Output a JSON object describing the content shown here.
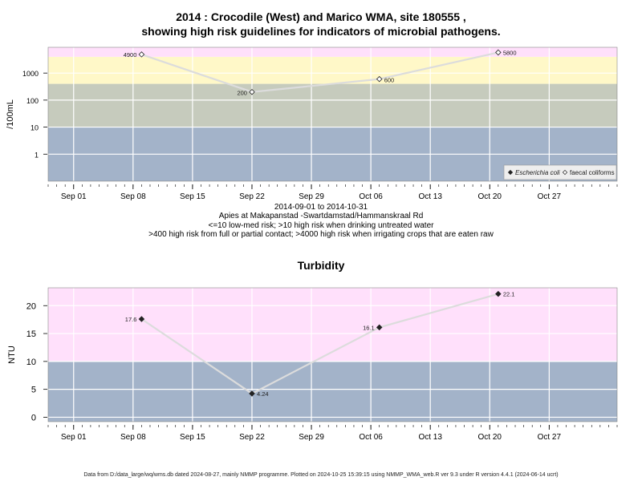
{
  "chart_data": [
    {
      "type": "line",
      "title_line1": "2014 : Crocodile (West) and Marico WMA, site 180555 ,",
      "title_line2": "showing high risk guidelines for indicators of microbial pathogens.",
      "ylabel": "/100mL",
      "yscale": "log",
      "ylim": [
        0.1,
        9000
      ],
      "yticks": [
        "1",
        "10",
        "100",
        "1000"
      ],
      "xticks": [
        "Sep 01",
        "Sep 08",
        "Sep 15",
        "Sep 22",
        "Sep 29",
        "Oct 06",
        "Oct 13",
        "Oct 20",
        "Oct 27"
      ],
      "xlim": [
        "2014-08-29",
        "2014-11-04"
      ],
      "bands": [
        {
          "from": 0.1,
          "to": 10,
          "color": "#a3b3c9"
        },
        {
          "from": 10,
          "to": 400,
          "color": "#c6cbbd"
        },
        {
          "from": 400,
          "to": 4000,
          "color": "#fff8c8"
        },
        {
          "from": 4000,
          "to": 9000,
          "color": "#ffe0fb"
        }
      ],
      "legend": {
        "placement": "bottom-right",
        "items": [
          {
            "label": "Escherichia coli",
            "marker": "filled-diamond"
          },
          {
            "label": "faecal coliforms",
            "marker": "open-diamond"
          }
        ]
      },
      "series": [
        {
          "name": "faecal coliforms",
          "marker": "open-diamond",
          "points": [
            {
              "date": "2014-09-09",
              "value": 4900,
              "label": "4900"
            },
            {
              "date": "2014-09-22",
              "value": 200,
              "label": "200"
            },
            {
              "date": "2014-10-07",
              "value": 600,
              "label": "600"
            },
            {
              "date": "2014-10-21",
              "value": 5800,
              "label": "5800"
            }
          ]
        }
      ]
    },
    {
      "type": "line",
      "title": "Turbidity",
      "ylabel": "NTU",
      "ylim": [
        -0.8,
        23.2
      ],
      "yticks": [
        "0",
        "5",
        "10",
        "15",
        "20"
      ],
      "xticks": [
        "Sep 01",
        "Sep 08",
        "Sep 15",
        "Sep 22",
        "Sep 29",
        "Oct 06",
        "Oct 13",
        "Oct 20",
        "Oct 27"
      ],
      "xlim": [
        "2014-08-29",
        "2014-11-04"
      ],
      "bands": [
        {
          "from": -0.8,
          "to": 10,
          "color": "#a3b3c9"
        },
        {
          "from": 10,
          "to": 23.2,
          "color": "#ffe0fb"
        }
      ],
      "series": [
        {
          "marker": "filled-diamond",
          "points": [
            {
              "date": "2014-09-09",
              "value": 17.6,
              "label": "17.6"
            },
            {
              "date": "2014-09-22",
              "value": 4.24,
              "label": "4.24"
            },
            {
              "date": "2014-10-07",
              "value": 16.1,
              "label": "16.1"
            },
            {
              "date": "2014-10-21",
              "value": 22.1,
              "label": "22.1"
            }
          ]
        }
      ]
    }
  ],
  "captions": {
    "date_range": "2014-09-01 to 2014-10-31",
    "site_name": "Apies at Makapanstad -Swartdamstad/Hammanskraal Rd",
    "risk_line1": "<=10 low-med risk; >10 high risk when drinking untreated water",
    "risk_line2": ">400 high risk from full or partial contact; >4000 high risk when irrigating crops that are eaten raw"
  },
  "footer": "Data from D:/data_large/wq/wms.db dated 2024-08-27, mainly NMMP programme. Plotted on 2024-10-25 15:39:15 using NMMP_WMA_web.R ver 9.3 under R version 4.4.1 (2024-06-14 ucrt)"
}
